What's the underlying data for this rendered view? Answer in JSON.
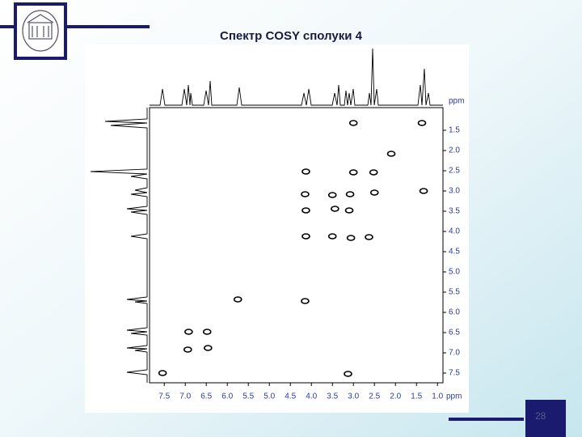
{
  "slide": {
    "title": "Спектр COSY сполуки 4",
    "page_number": "28"
  },
  "chart_data": {
    "type": "scatter",
    "x": [
      1.37,
      3.0,
      2.1,
      2.52,
      4.13,
      3.0,
      1.33,
      3.5,
      3.08,
      2.5,
      4.15,
      3.44,
      3.1,
      4.13,
      3.5,
      4.13,
      2.63,
      3.06,
      5.75,
      4.15,
      6.92,
      6.48,
      6.94,
      6.46,
      7.54,
      3.13
    ],
    "values": [
      1.32,
      1.32,
      2.08,
      2.54,
      2.52,
      2.54,
      3.0,
      3.1,
      3.08,
      3.04,
      3.08,
      3.44,
      3.48,
      3.48,
      4.12,
      4.12,
      4.14,
      4.16,
      5.68,
      5.72,
      6.48,
      6.48,
      6.92,
      6.88,
      7.5,
      7.52
    ],
    "color": "#000000",
    "xlabel": "ppm",
    "ylabel": "ppm",
    "xlim": [
      7.85,
      0.87
    ],
    "ylim": [
      0.94,
      7.74
    ],
    "xticks": [
      7.5,
      {
        "value": 7,
        "label": "7.0"
      },
      6.5,
      {
        "value": 6,
        "label": "6.0"
      },
      5.5,
      {
        "value": 5,
        "label": "5.0"
      },
      4.5,
      {
        "value": 4,
        "label": "4.0"
      },
      3.5,
      {
        "value": 3,
        "label": "3.0"
      },
      2.5,
      {
        "value": 2,
        "label": "2.0"
      },
      1.5,
      {
        "value": 1,
        "label": "1.0"
      }
    ],
    "yticks": [
      1.5,
      {
        "value": 2,
        "label": "2.0"
      },
      2.5,
      {
        "value": 3,
        "label": "3.0"
      },
      3.5,
      {
        "value": 4,
        "label": "4.0"
      },
      4.5,
      {
        "value": 5,
        "label": "5.0"
      },
      5.5,
      {
        "value": 6,
        "label": "6.0"
      },
      6.5,
      {
        "value": 7,
        "label": "7.0"
      },
      7.5
    ],
    "tick_color": "#2b3a9c"
  }
}
